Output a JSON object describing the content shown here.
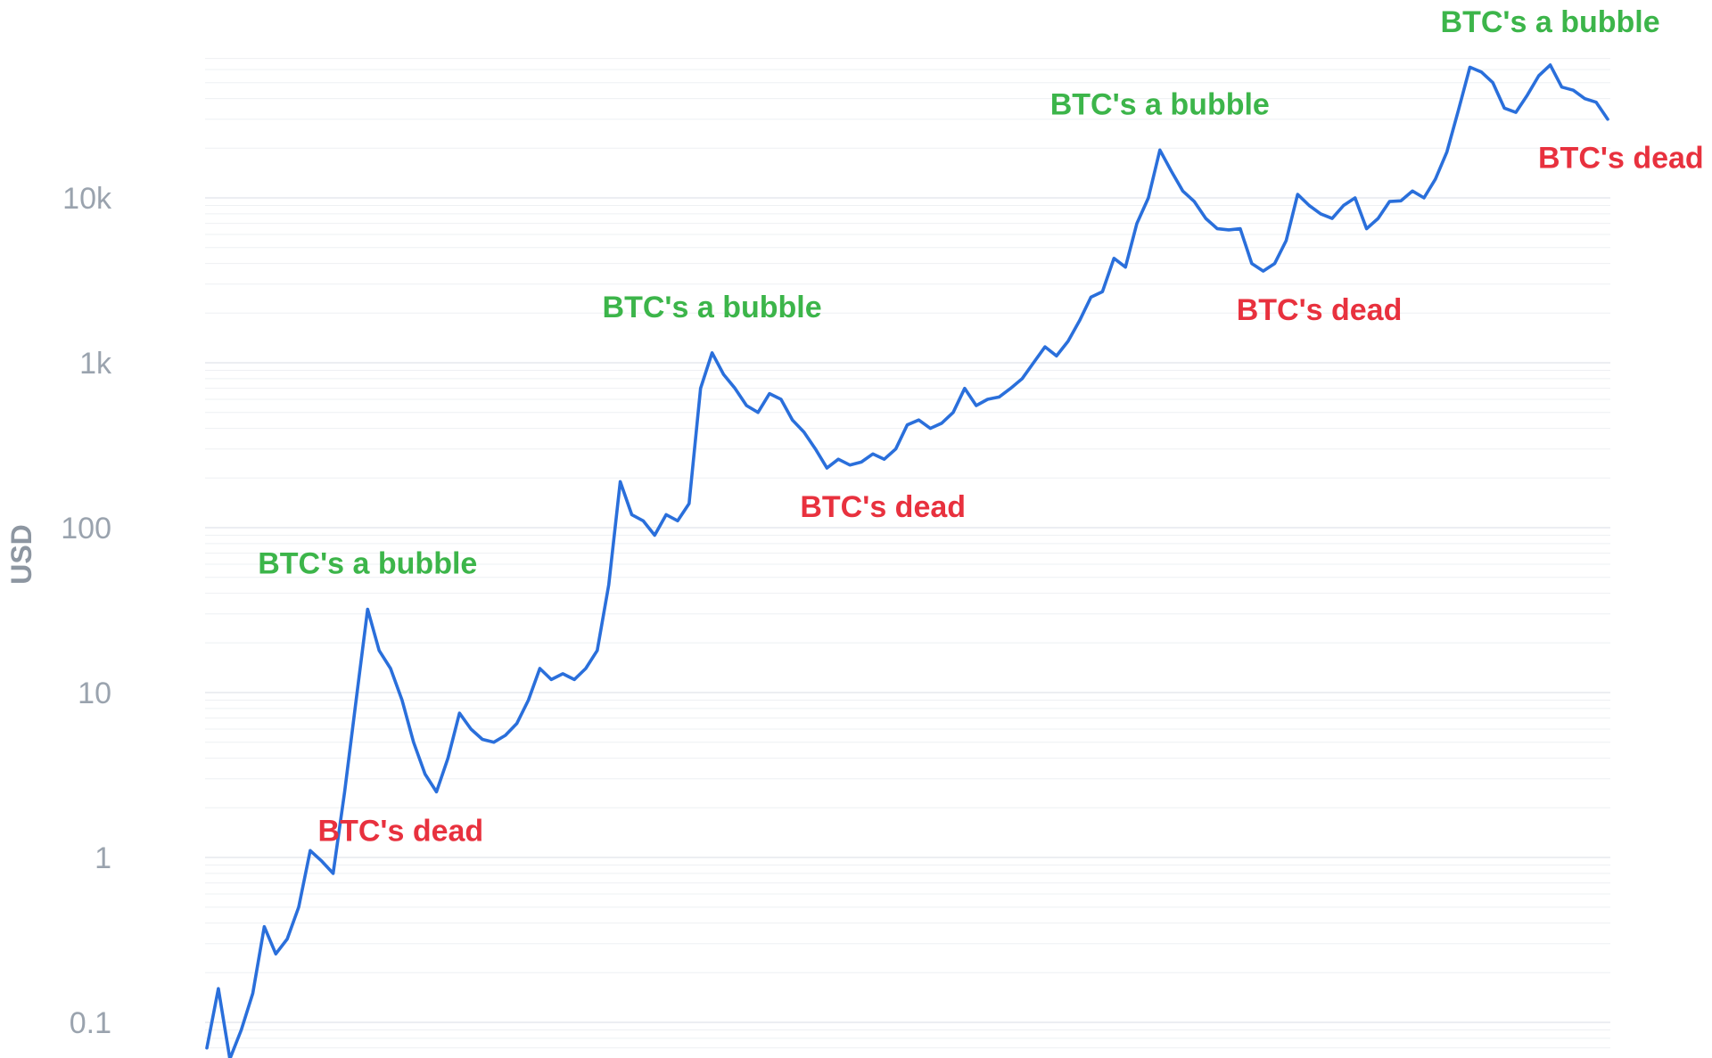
{
  "chart_data": {
    "type": "line",
    "ylabel": "USD",
    "yscale": "log",
    "ylim": [
      0.06,
      90000
    ],
    "yticks": [
      {
        "value": 0.1,
        "label": "0.1"
      },
      {
        "value": 1,
        "label": "1"
      },
      {
        "value": 10,
        "label": "10"
      },
      {
        "value": 100,
        "label": "100"
      },
      {
        "value": 1000,
        "label": "1k"
      },
      {
        "value": 10000,
        "label": "10k"
      }
    ],
    "grid": true,
    "line_color": "#2a6fdb",
    "series": [
      {
        "values": [
          0.07,
          0.16,
          0.06,
          0.09,
          0.15,
          0.38,
          0.26,
          0.32,
          0.5,
          1.1,
          0.95,
          0.8,
          2.5,
          9,
          32,
          18,
          14,
          9,
          5,
          3.2,
          2.5,
          4,
          7.5,
          6,
          5.2,
          5,
          5.5,
          6.5,
          9,
          14,
          12,
          13,
          12,
          14,
          18,
          45,
          190,
          120,
          110,
          90,
          120,
          110,
          140,
          700,
          1150,
          850,
          700,
          550,
          500,
          650,
          600,
          450,
          380,
          300,
          230,
          260,
          240,
          250,
          280,
          260,
          300,
          420,
          450,
          400,
          430,
          500,
          700,
          550,
          600,
          620,
          700,
          800,
          1000,
          1250,
          1100,
          1350,
          1800,
          2500,
          2700,
          4300,
          3800,
          7000,
          10000,
          19500,
          14500,
          11000,
          9500,
          7500,
          6500,
          6400,
          6500,
          4000,
          3600,
          4000,
          5500,
          10500,
          9000,
          8000,
          7500,
          9000,
          10000,
          6500,
          7500,
          9500,
          9600,
          11000,
          10000,
          13000,
          19000,
          34000,
          62000,
          58000,
          50000,
          35000,
          33000,
          42000,
          55000,
          64000,
          47000,
          45000,
          40000,
          38000,
          30000
        ]
      }
    ],
    "annotations": [
      {
        "text": "BTC's a bubble",
        "color": "#3cb54a",
        "near_value": 32,
        "position": "above"
      },
      {
        "text": "BTC's dead",
        "color": "#e8313e",
        "near_value": 2.5,
        "position": "below-right"
      },
      {
        "text": "BTC's a bubble",
        "color": "#3cb54a",
        "near_value": 1150,
        "position": "above"
      },
      {
        "text": "BTC's dead",
        "color": "#e8313e",
        "near_value": 230,
        "position": "below-right"
      },
      {
        "text": "BTC's a bubble",
        "color": "#3cb54a",
        "near_value": 19500,
        "position": "above"
      },
      {
        "text": "BTC's dead",
        "color": "#e8313e",
        "near_value": 3600,
        "position": "below-right"
      },
      {
        "text": "BTC's a bubble",
        "color": "#3cb54a",
        "near_value": 64000,
        "position": "above"
      },
      {
        "text": "BTC's dead",
        "color": "#e8313e",
        "near_value": 30000,
        "position": "below-right"
      }
    ]
  }
}
